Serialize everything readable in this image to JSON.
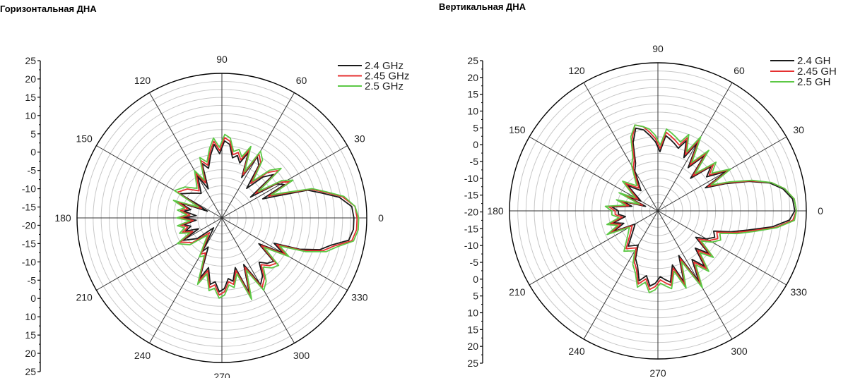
{
  "charts": [
    {
      "title": "Горизонтальная ДНА"
    },
    {
      "title": "Вертикальная ДНА"
    }
  ],
  "colors": {
    "grid": "#c8c8c8",
    "spoke": "#333333",
    "frame": "#000000"
  },
  "chart_data": [
    {
      "type": "polar",
      "title": "Горизонтальная ДНА",
      "angle_labels": [
        "0",
        "30",
        "60",
        "90",
        "120",
        "150",
        "180",
        "210",
        "240",
        "270",
        "300",
        "330"
      ],
      "radial_ticks": [
        "25",
        "20",
        "15",
        "10",
        "5",
        "0",
        "-5",
        "-10",
        "-15",
        "-20",
        "-15",
        "-10",
        "-5",
        "0",
        "10",
        "15",
        "20",
        "25"
      ],
      "rlim": [
        -20,
        25
      ],
      "legend_position": "top-right",
      "series": [
        {
          "name": "2.4  GHz",
          "color": "#1a1a1a",
          "angles": [
            0,
            5,
            10,
            14,
            18,
            22,
            25,
            28,
            32,
            36,
            40,
            45,
            50,
            55,
            60,
            64,
            68,
            72,
            76,
            80,
            84,
            88,
            92,
            96,
            100,
            105,
            110,
            115,
            120,
            130,
            140,
            150,
            155,
            160,
            165,
            170,
            175,
            180,
            185,
            190,
            195,
            200,
            205,
            210,
            220,
            230,
            240,
            245,
            250,
            255,
            260,
            264,
            268,
            272,
            276,
            280,
            285,
            290,
            295,
            300,
            305,
            310,
            315,
            320,
            325,
            330,
            334,
            338,
            342,
            346,
            350,
            355
          ],
          "values": [
            21,
            20.5,
            17,
            12,
            8,
            -2,
            -6,
            2,
            0,
            -9,
            1,
            -2,
            -8,
            0,
            2,
            -6,
            2,
            -2,
            0,
            -1,
            3,
            4,
            0,
            3,
            0,
            -4,
            -2,
            -10,
            -5,
            -10,
            -8,
            -5,
            -15,
            -6,
            -10,
            -8,
            -12,
            -8,
            -12,
            -8,
            -10,
            -8,
            -12,
            -6,
            -10,
            -16,
            -8,
            -10,
            0,
            -4,
            1,
            0,
            3,
            2,
            -1,
            0,
            -4,
            5,
            -4,
            4,
            2,
            -2,
            0,
            1,
            -6,
            2,
            -2,
            6,
            12,
            15,
            20,
            21
          ]
        },
        {
          "name": "2.45 GHz",
          "color": "#e53030",
          "angles": [
            0,
            5,
            10,
            14,
            18,
            22,
            25,
            28,
            32,
            36,
            40,
            45,
            50,
            55,
            60,
            64,
            68,
            72,
            76,
            80,
            84,
            88,
            92,
            96,
            100,
            105,
            110,
            115,
            120,
            130,
            140,
            150,
            155,
            160,
            165,
            170,
            175,
            180,
            185,
            190,
            195,
            200,
            205,
            210,
            220,
            230,
            240,
            245,
            250,
            255,
            260,
            264,
            268,
            272,
            276,
            280,
            285,
            290,
            295,
            300,
            305,
            310,
            315,
            320,
            325,
            330,
            334,
            338,
            342,
            346,
            350,
            355
          ],
          "values": [
            22,
            21.5,
            18,
            13,
            9,
            0,
            -4,
            4,
            1,
            -7,
            3,
            0,
            -6,
            1,
            3,
            -5,
            3,
            -1,
            1,
            0,
            4,
            5,
            1,
            4,
            1,
            -3,
            -1,
            -8,
            -4,
            -9,
            -6,
            -4,
            -13,
            -5,
            -9,
            -7,
            -10,
            -7,
            -11,
            -7,
            -9,
            -7,
            -10,
            -5,
            -8,
            -14,
            -7,
            -8,
            1,
            -3,
            2,
            1,
            4,
            3,
            0,
            1,
            -3,
            6,
            -3,
            5,
            3,
            -1,
            1,
            2,
            -5,
            3,
            -1,
            7,
            13,
            16,
            21,
            22
          ]
        },
        {
          "name": "2.5  GHz",
          "color": "#5cc845",
          "angles": [
            0,
            5,
            10,
            14,
            18,
            22,
            25,
            28,
            32,
            36,
            40,
            45,
            50,
            55,
            60,
            64,
            68,
            72,
            76,
            80,
            84,
            88,
            92,
            96,
            100,
            105,
            110,
            115,
            120,
            130,
            140,
            150,
            155,
            160,
            165,
            170,
            175,
            180,
            185,
            190,
            195,
            200,
            205,
            210,
            220,
            230,
            240,
            245,
            250,
            255,
            260,
            264,
            268,
            272,
            276,
            280,
            285,
            290,
            295,
            300,
            305,
            310,
            315,
            320,
            325,
            330,
            334,
            338,
            342,
            346,
            350,
            355
          ],
          "values": [
            22.5,
            21.5,
            18.5,
            13.5,
            9.5,
            1,
            -3,
            5,
            2,
            -6,
            4,
            1,
            -5,
            2,
            4,
            -4,
            4,
            0,
            2,
            1,
            5,
            6,
            2,
            5,
            2,
            -2,
            0,
            -7,
            -3,
            -8,
            -5,
            -3,
            -12,
            -4,
            -8,
            -6,
            -9,
            -6,
            -10,
            -6,
            -8,
            -6,
            -9,
            -4,
            -7,
            -13,
            -6,
            -7,
            2,
            -2,
            3,
            2,
            5,
            4,
            1,
            2,
            -2,
            7,
            -2,
            6,
            4,
            0,
            2,
            3,
            -4,
            4,
            0,
            8,
            14,
            17,
            21.5,
            22.5
          ]
        }
      ]
    },
    {
      "type": "polar",
      "title": "Вертикальная ДНА",
      "angle_labels": [
        "0",
        "30",
        "60",
        "90",
        "120",
        "150",
        "180",
        "210",
        "240",
        "270",
        "300",
        "330"
      ],
      "radial_ticks": [
        "25",
        "20",
        "15",
        "10",
        "5",
        "0",
        "-5",
        "-10",
        "-15",
        "-20",
        "-15",
        "-10",
        "-5",
        "0",
        "5",
        "10",
        "15",
        "20",
        "25"
      ],
      "rlim": [
        -20,
        25
      ],
      "legend_position": "top-right",
      "series": [
        {
          "name": "2.4  GH",
          "color": "#1a1a1a",
          "angles": [
            0,
            5,
            10,
            14,
            18,
            22,
            26,
            30,
            35,
            40,
            45,
            50,
            55,
            60,
            64,
            68,
            72,
            76,
            80,
            84,
            88,
            92,
            96,
            100,
            105,
            110,
            115,
            120,
            130,
            140,
            150,
            155,
            160,
            165,
            170,
            175,
            180,
            185,
            190,
            195,
            200,
            205,
            210,
            220,
            230,
            240,
            245,
            250,
            255,
            260,
            264,
            268,
            272,
            276,
            280,
            285,
            290,
            295,
            300,
            305,
            310,
            315,
            320,
            325,
            330,
            335,
            340,
            344,
            348,
            352,
            356
          ],
          "values": [
            21.5,
            21,
            18.5,
            15,
            9,
            2,
            -4,
            4,
            -2,
            1,
            -6,
            2,
            -4,
            4,
            -2,
            3,
            0,
            1,
            2,
            3,
            -2,
            1,
            3,
            5,
            6,
            2,
            -4,
            -6,
            -12,
            -8,
            -14,
            -9,
            -16,
            -9,
            -12,
            -6,
            -8,
            -8,
            -10,
            -6,
            -9,
            -5,
            -12,
            -10,
            -6,
            -8,
            -4,
            -2,
            2,
            0,
            3,
            2,
            0,
            1,
            2,
            -3,
            3,
            -5,
            5,
            -2,
            2,
            -4,
            0,
            -6,
            -3,
            -1,
            -2,
            3,
            8,
            15,
            20
          ]
        },
        {
          "name": "2.45 GH",
          "color": "#e53030",
          "angles": [
            0,
            5,
            10,
            14,
            18,
            22,
            26,
            30,
            35,
            40,
            45,
            50,
            55,
            60,
            64,
            68,
            72,
            76,
            80,
            84,
            88,
            92,
            96,
            100,
            105,
            110,
            115,
            120,
            130,
            140,
            150,
            155,
            160,
            165,
            170,
            175,
            180,
            185,
            190,
            195,
            200,
            205,
            210,
            220,
            230,
            240,
            245,
            250,
            255,
            260,
            264,
            268,
            272,
            276,
            280,
            285,
            290,
            295,
            300,
            305,
            310,
            315,
            320,
            325,
            330,
            335,
            340,
            344,
            348,
            352,
            356
          ],
          "values": [
            22,
            21.5,
            19,
            15.5,
            9.5,
            3,
            -3,
            5,
            -1,
            2,
            -5,
            3,
            -3,
            5,
            -1,
            4,
            1,
            2,
            3,
            4,
            -1,
            2,
            4,
            6,
            7,
            3,
            -3,
            -5,
            -11,
            -7,
            -13,
            -8,
            -15,
            -8,
            -11,
            -5,
            -7,
            -7,
            -9,
            -5,
            -8,
            -4,
            -11,
            -9,
            -5,
            -7,
            -3,
            -1,
            3,
            1,
            4,
            3,
            1,
            2,
            3,
            -2,
            4,
            -4,
            6,
            -1,
            3,
            -3,
            1,
            -5,
            -2,
            0,
            -1,
            4,
            9,
            16,
            21
          ]
        },
        {
          "name": "2.5  GH",
          "color": "#5cc845",
          "angles": [
            0,
            5,
            10,
            14,
            18,
            22,
            26,
            30,
            35,
            40,
            45,
            50,
            55,
            60,
            64,
            68,
            72,
            76,
            80,
            84,
            88,
            92,
            96,
            100,
            105,
            110,
            115,
            120,
            130,
            140,
            150,
            155,
            160,
            165,
            170,
            175,
            180,
            185,
            190,
            195,
            200,
            205,
            210,
            220,
            230,
            240,
            245,
            250,
            255,
            260,
            264,
            268,
            272,
            276,
            280,
            285,
            290,
            295,
            300,
            305,
            310,
            315,
            320,
            325,
            330,
            335,
            340,
            344,
            348,
            352,
            356
          ],
          "values": [
            22,
            21.5,
            19,
            15.5,
            10,
            3.5,
            -2,
            5.5,
            0,
            3,
            -4,
            4,
            -2,
            6,
            0,
            5,
            2,
            3,
            4,
            5,
            0,
            3,
            5,
            6,
            7,
            4,
            -2,
            -4,
            -10,
            -6,
            -12,
            -7,
            -14,
            -7,
            -10,
            -4,
            -6,
            -6,
            -8,
            -4,
            -7,
            -3,
            -10,
            -8,
            -4,
            -6,
            -2,
            0,
            4,
            2,
            5,
            4,
            2,
            3,
            4,
            -1,
            5,
            -3,
            7,
            0,
            4,
            -2,
            2,
            -4,
            -1,
            1,
            0,
            5,
            10,
            16.5,
            21.5
          ]
        }
      ]
    }
  ]
}
